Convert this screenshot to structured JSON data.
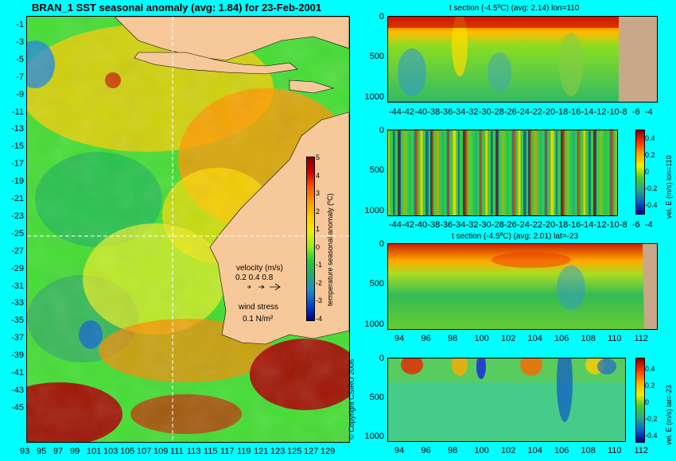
{
  "chart_data": [
    {
      "type": "heatmap",
      "title": "BRAN_1  SST seasonal anomaly  (avg: 1.84) for 23-Feb-2001",
      "x_ticks": [
        "93",
        "95",
        "97",
        "99",
        "101",
        "103",
        "105",
        "107",
        "109",
        "111",
        "113",
        "115",
        "117",
        "119",
        "121",
        "123",
        "125",
        "127",
        "129"
      ],
      "y_ticks": [
        "-1",
        "-3",
        "-5",
        "-7",
        "-9",
        "-11",
        "-13",
        "-15",
        "-17",
        "-19",
        "-21",
        "-23",
        "-25",
        "-27",
        "-29",
        "-31",
        "-33",
        "-35",
        "-37",
        "-39",
        "-41",
        "-43",
        "-45"
      ],
      "xlim": [
        93,
        130
      ],
      "ylim": [
        -45,
        0
      ],
      "crosshair": {
        "lon": 110,
        "lat": -23
      },
      "colorbar": {
        "label": "temperature seasonal anomaly (ºC)",
        "ticks": [
          "5",
          "4",
          "3",
          "2",
          "1",
          "0",
          "-1",
          "-2",
          "-3",
          "-4"
        ],
        "range": [
          -4,
          5
        ]
      },
      "legend": {
        "velocity_label": "velocity (m/s)",
        "velocity_scale": "0.2 0.4 0.8",
        "wind_label": "wind stress",
        "wind_scale": "0.1 N/m²"
      },
      "copyright": "© Copyright CSIRO 2006"
    },
    {
      "type": "heatmap",
      "title": "t section (-4.5ºC) (avg: 2.14) lon=110",
      "x_ticks": [
        "-44",
        "-42",
        "-40",
        "-38",
        "-36",
        "-34",
        "-32",
        "-30",
        "-28",
        "-26",
        "-24",
        "-22",
        "-20",
        "-18",
        "-16",
        "-14",
        "-12",
        "-10",
        "-8",
        "-6",
        "-4"
      ],
      "y_ticks": [
        "0",
        "500",
        "1000"
      ],
      "xlim": [
        -45,
        -2
      ],
      "ylim": [
        1050,
        0
      ]
    },
    {
      "type": "heatmap",
      "title": "",
      "x_ticks": [
        "-44",
        "-42",
        "-40",
        "-38",
        "-36",
        "-34",
        "-32",
        "-30",
        "-28",
        "-26",
        "-24",
        "-22",
        "-20",
        "-18",
        "-16",
        "-14",
        "-12",
        "-10",
        "-8",
        "-6",
        "-4"
      ],
      "y_ticks": [
        "0",
        "500",
        "1000"
      ],
      "xlim": [
        -45,
        -2
      ],
      "ylim": [
        1050,
        0
      ],
      "colorbar": {
        "label": "vel. E (m/s) lon=110",
        "ticks": [
          "0.4",
          "0.2",
          "0",
          "-0.2",
          "-0.4"
        ],
        "range": [
          -0.45,
          0.45
        ]
      }
    },
    {
      "type": "heatmap",
      "title": "t section (-4.5ºC) (avg: 2.01) lat=-23",
      "x_ticks": [
        "94",
        "96",
        "98",
        "100",
        "102",
        "104",
        "106",
        "108",
        "110",
        "112"
      ],
      "y_ticks": [
        "0",
        "500",
        "1000"
      ],
      "xlim": [
        93,
        114
      ],
      "ylim": [
        1050,
        0
      ]
    },
    {
      "type": "heatmap",
      "title": "",
      "x_ticks": [
        "94",
        "96",
        "98",
        "100",
        "102",
        "104",
        "106",
        "108",
        "110",
        "112"
      ],
      "y_ticks": [
        "0",
        "500",
        "1000"
      ],
      "xlim": [
        93,
        114
      ],
      "ylim": [
        1050,
        0
      ],
      "colorbar": {
        "label": "vel. E (m/s) lat=-23",
        "ticks": [
          "0.4",
          "0.2",
          "0",
          "-0.2",
          "-0.4"
        ],
        "range": [
          -0.45,
          0.45
        ]
      }
    }
  ]
}
